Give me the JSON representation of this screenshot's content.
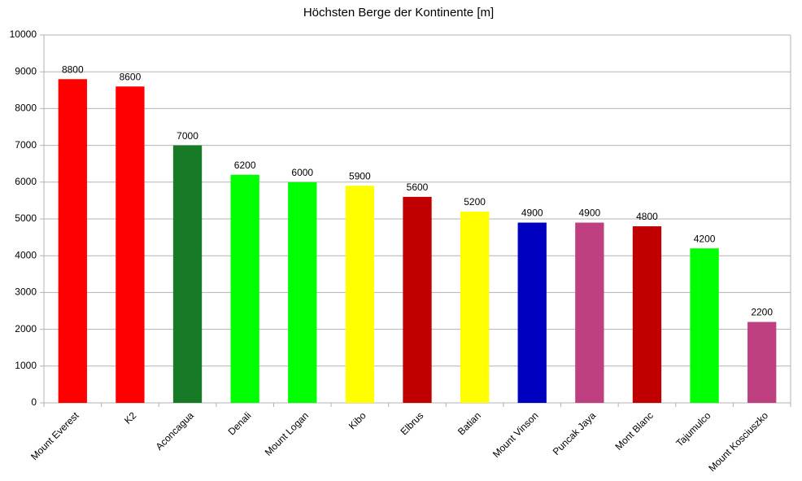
{
  "chart_data": {
    "type": "bar",
    "title": "Höchsten Berge der Kontinente [m]",
    "categories": [
      "Mount Everest",
      "K2",
      "Aconcagua",
      "Denali",
      "Mount Logan",
      "Kibo",
      "Elbrus",
      "Batian",
      "Mount Vinson",
      "Puncak Jaya",
      "Mont Blanc",
      "Tajumulco",
      "Mount Kosciuszko"
    ],
    "values": [
      8800,
      8600,
      7000,
      6200,
      6000,
      5900,
      5600,
      5200,
      4900,
      4900,
      4800,
      4200,
      2200
    ],
    "colors": [
      "#ff0000",
      "#ff0000",
      "#177a27",
      "#00ff00",
      "#00ff00",
      "#ffff00",
      "#c00000",
      "#ffff00",
      "#0000c0",
      "#bf4080",
      "#c00000",
      "#00ff00",
      "#bf4080"
    ],
    "ylim": [
      0,
      10000
    ],
    "yticks": [
      0,
      1000,
      2000,
      3000,
      4000,
      5000,
      6000,
      7000,
      8000,
      9000,
      10000
    ],
    "grid": true
  }
}
